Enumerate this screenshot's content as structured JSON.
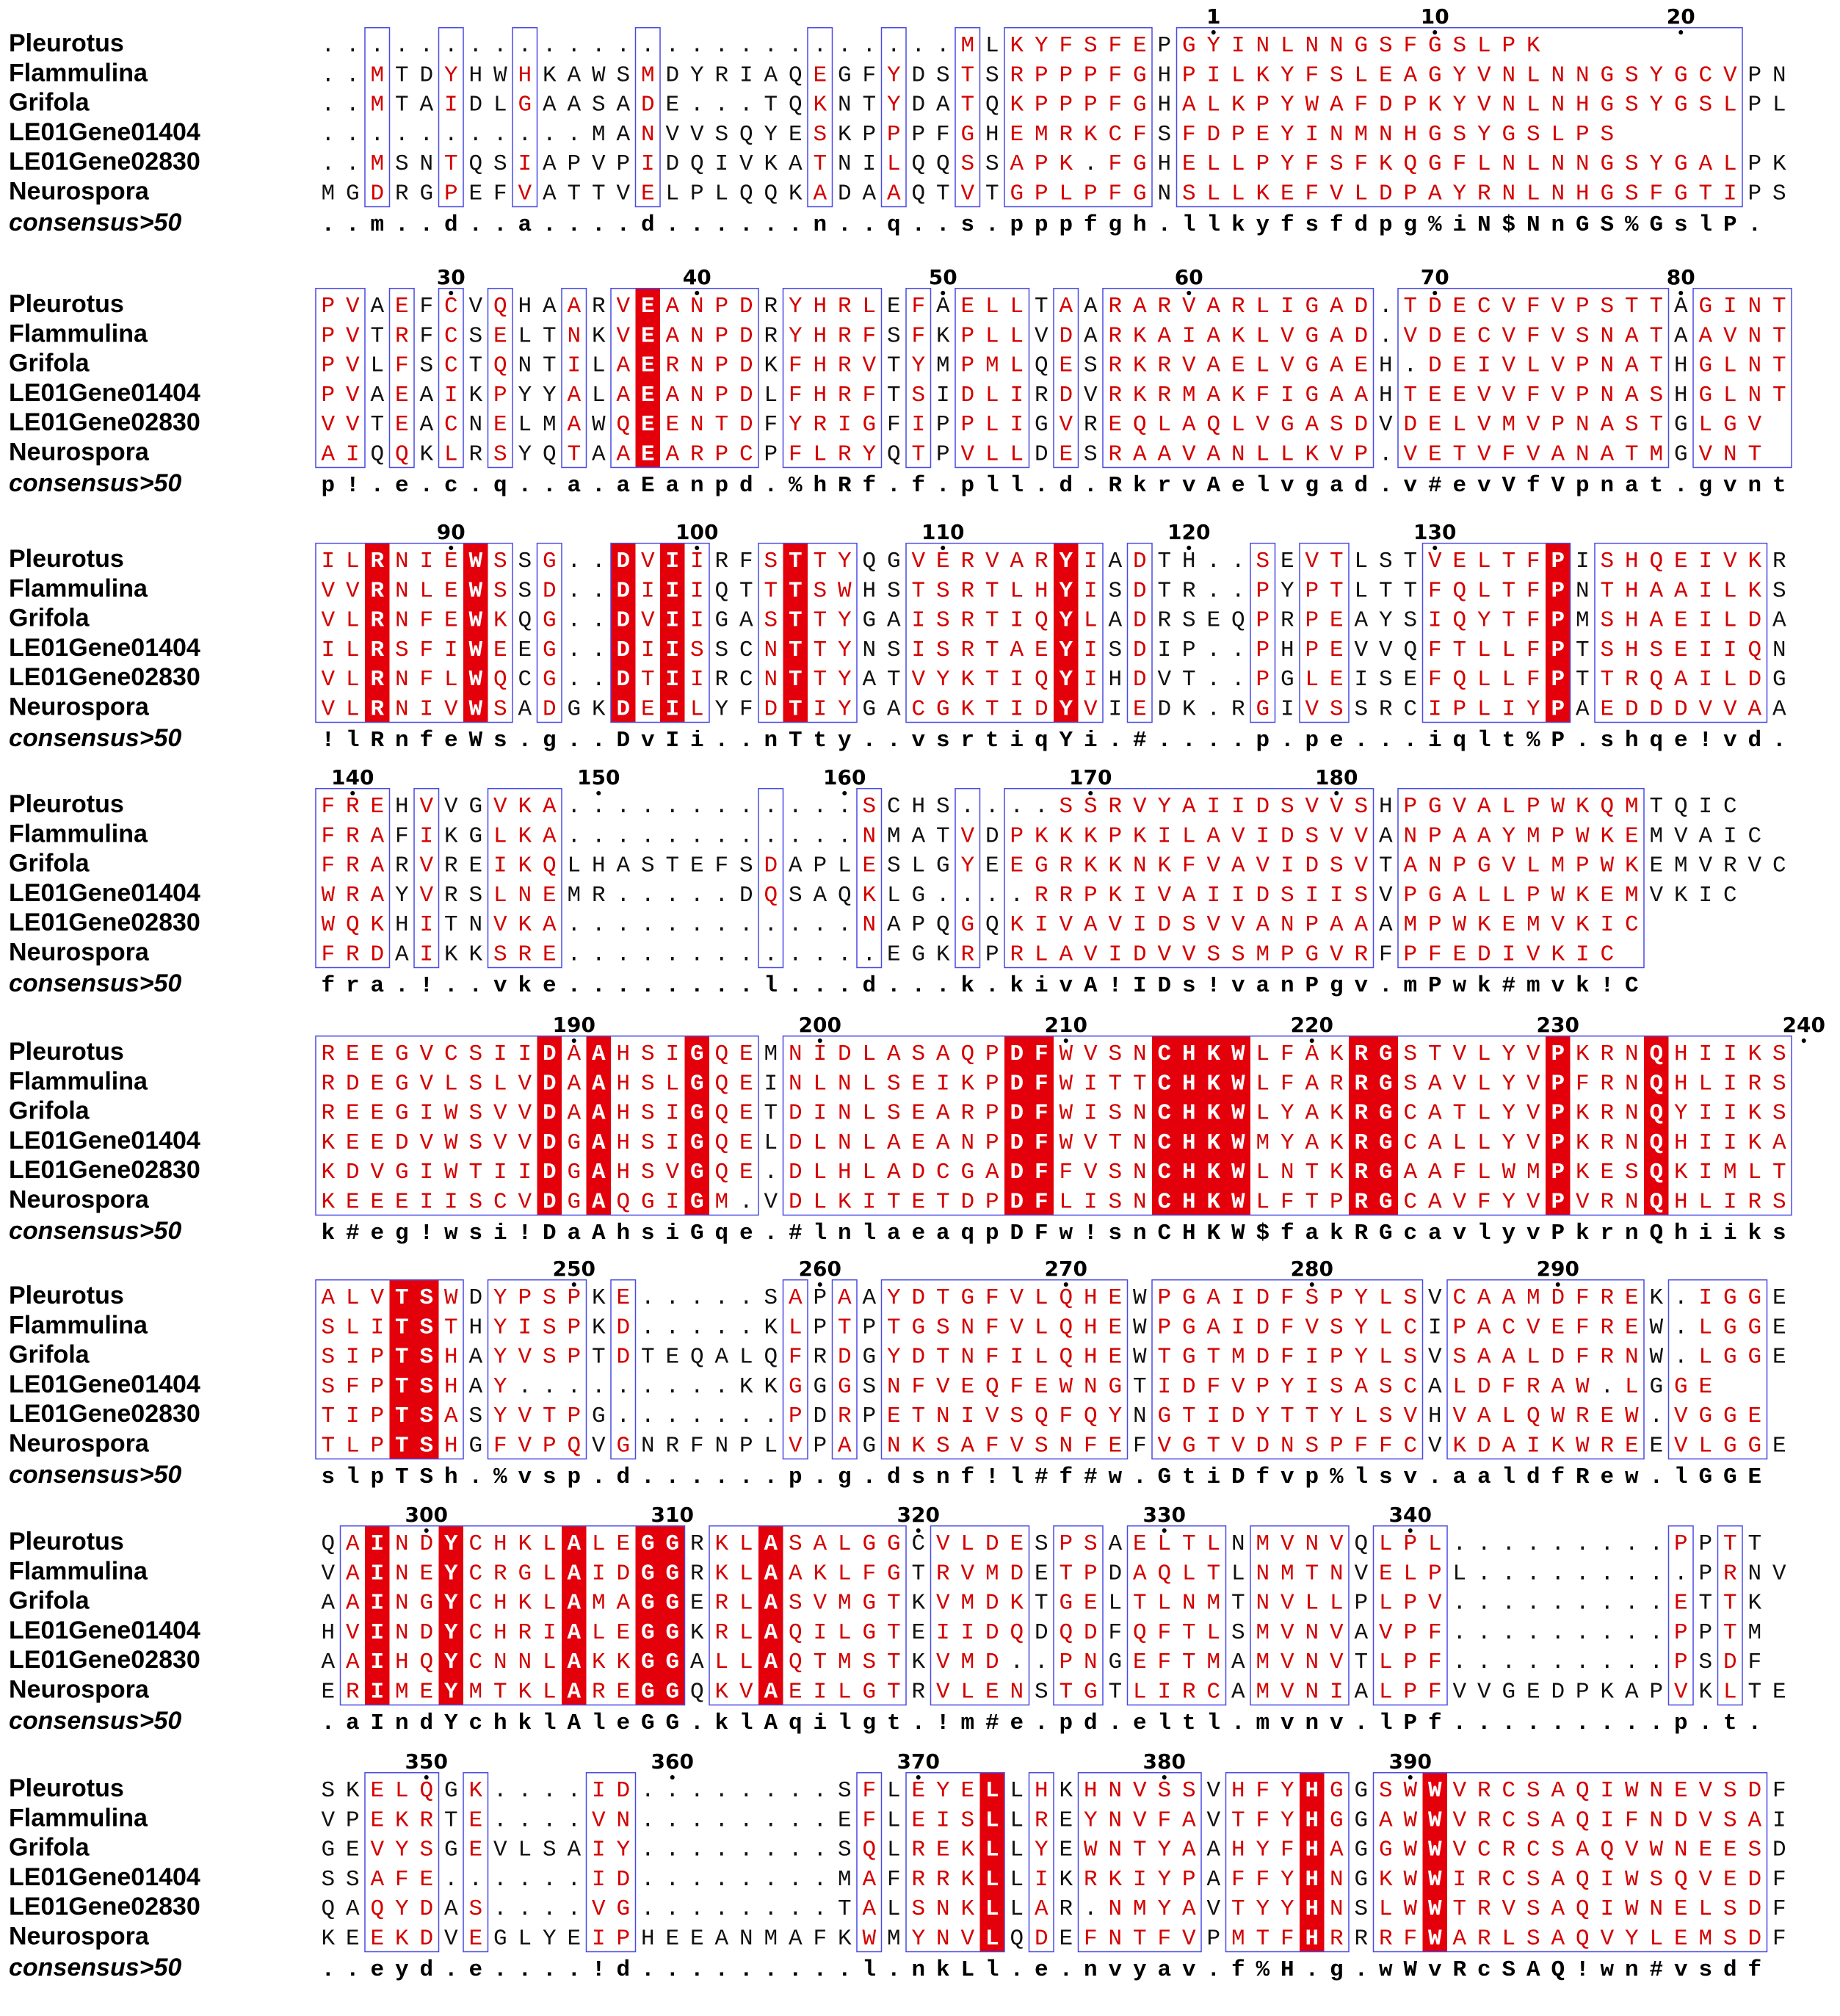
{
  "figure": {
    "title": "",
    "colors": {
      "identical_bg": "#e3000b",
      "similar_text": "#d40000",
      "box_border": "#4a4ae6",
      "consensus_text": "#000000"
    }
  },
  "blocks": [
    {
      "start": 1,
      "numbers": [
        {
          "col": 36,
          "label": "1"
        },
        {
          "col": 45,
          "label": "10"
        },
        {
          "col": 55,
          "label": "20"
        }
      ],
      "rows": [
        {
          "name": "Pleurotus",
          "seq": "..........................MLKYFSFEPGYINLNNGSFGSLPK"
        },
        {
          "name": "Flammulina",
          "seq": "..MTDYHWHKAWSMDYRIAQEGFYDSTSRPPPFGHPILKYFSLEAGYVNLNNGSYGCVPN"
        },
        {
          "name": "Grifola",
          "seq": "..MTAIDLGAASADE...TQKNTYDATQKPPPFGHALKPYWAFDPKYVNLNHGSYGSLPL"
        },
        {
          "name": "LE01Gene01404",
          "seq": "...........MANVVSQYESKPPPFGHEMRKCFSFDPEYINMNHGSYGSLPS"
        },
        {
          "name": "LE01Gene02830",
          "seq": "..MSNTQSIAPVPIDQIVKATNILQQSSAPK.FGHELLPYFSFKQGFLNLNNGSYGALPK"
        },
        {
          "name": "Neurospora",
          "seq": "MGDRGPEFVATTVELPLQQKADAAQTVTGPLPFGNSLLKEFVLDPAYRNLNHGSFGTIPS"
        }
      ],
      "consensus": "..m..d..a....d......n..q..s.pppfgh.llkyfsfdpg%iN$NnGS%GslP."
    },
    {
      "start": 25,
      "numbers": [
        {
          "col": 5,
          "label": "30"
        },
        {
          "col": 15,
          "label": "40"
        },
        {
          "col": 25,
          "label": "50"
        },
        {
          "col": 35,
          "label": "60"
        },
        {
          "col": 45,
          "label": "70"
        },
        {
          "col": 55,
          "label": "80"
        }
      ],
      "rows": [
        {
          "name": "Pleurotus",
          "seq": "PVAEFCVQHAARVEANPDRYHRLEFAELLTAARARVARLIGAD.TDECVFVPSTTAGINT"
        },
        {
          "name": "Flammulina",
          "seq": "PVTRFCSELTNKVEANPDRYHRFSFKPLLVDARKAIAKLVGAD.VDECVFVSNATAAVNT"
        },
        {
          "name": "Grifola",
          "seq": "PVLFSCTQNTILAERNPDKFHRVTYMPMLQESRKRVAELVGAEH.DEIVLVPNATHGLNT"
        },
        {
          "name": "LE01Gene01404",
          "seq": "PVAEAIKPYYALAEANPDLFHRFTSIDLIRDVRKRMAKFIGAAHTEEVVFVPNASHGLNT"
        },
        {
          "name": "LE01Gene02830",
          "seq": "VVTEACNELMAWQEENTDFYRIGFIPPLIGVREQLAQLVGASDVDELVMVPNASTGLGV"
        },
        {
          "name": "Neurospora",
          "seq": "AIQQKLRSYQTAAEARPCPFLRYQTPVLLDESRAAVANLLKVP.VETVFVANATMGVNT"
        }
      ],
      "consensus": "p!.e.c.q..a.aEanpd.%hRf.f.pll.d.RkrvAelvgad.v#evVfVpnat.gvnt"
    },
    {
      "start": 85,
      "numbers": [
        {
          "col": 5,
          "label": "90"
        },
        {
          "col": 15,
          "label": "100"
        },
        {
          "col": 25,
          "label": "110"
        },
        {
          "col": 35,
          "label": "120"
        },
        {
          "col": 45,
          "label": "130"
        }
      ],
      "rows": [
        {
          "name": "Pleurotus",
          "seq": "ILRNIEWSSG..DVIIRFSTTYQGVERVARYIADTH..SEVTLSTVELTFPISHQEIVKR"
        },
        {
          "name": "Flammulina",
          "seq": "VVRNLEWSSD..DIIIQTTTSWHSTSRTLHYISDTR..PYPTLTTFQLTFPNTHAAILKS"
        },
        {
          "name": "Grifola",
          "seq": "VLRNFEWKQG..DVIIGASTTYGAISRTIQYLADRSEQPRPEAYSIQYTFPMSHAEILDA"
        },
        {
          "name": "LE01Gene01404",
          "seq": "ILRSFIWEEG..DIISSCNTTYNSISRTAEYISDIP..PHPEVVQFTLLFPTSHSEIIQN"
        },
        {
          "name": "LE01Gene02830",
          "seq": "VLRNFLWQCG..DTIIRCNTTYATVYKTIQYIHDVT..PGLEISEFQLLFPTTRQAILDG"
        },
        {
          "name": "Neurospora",
          "seq": "VLRNIVWSADGKDEILYFDTIYGACGKTIDYVIEDK.RGIVSSRCIPLIYPAEDDDVVAA"
        }
      ],
      "consensus": "!lRnfeWs.g..DvIi..nTty..vsrtiqYi.#....p.pe...iqlt%P.shqe!vd."
    },
    {
      "start": 140,
      "numbers": [
        {
          "col": 1,
          "label": "140"
        },
        {
          "col": 11,
          "label": "150"
        },
        {
          "col": 21,
          "label": "160"
        },
        {
          "col": 31,
          "label": "170"
        },
        {
          "col": 41,
          "label": "180"
        }
      ],
      "rows": [
        {
          "name": "Pleurotus",
          "seq": "FREHVVGVKA............SCHS....SSRVYAIIDSVVSHPGVALPWKQMTQIC"
        },
        {
          "name": "Flammulina",
          "seq": "FRAFIKGLKA............NMATVDPKKKPKILAVIDSVVANPAAYMPWKEMVAIC"
        },
        {
          "name": "Grifola",
          "seq": "FRARVREIKQLHASTEFSDAPLESLGYEEGRKKNKFVAVIDSVTANPGVLMPWKEMVRVC"
        },
        {
          "name": "LE01Gene01404",
          "seq": "WRAYVRSLNEMR.....DQSAQKLG....RRPKIVAIIDSIISVPGALLPWKEMVKIC"
        },
        {
          "name": "LE01Gene02830",
          "seq": "WQKHITNVKA............NAPQGQKIVAVIDSVVANPAAAMPWKEMVKIC"
        },
        {
          "name": "Neurospora",
          "seq": "FRDAIKKSRE.............EGKRPRLAVIDVVSSMPGVRFPFEDIVKIC"
        }
      ],
      "consensus": "fra.!..vke........l...d...k.kivA!IDs!vanPgv.mPwk#mvk!C"
    },
    {
      "start": 181,
      "numbers": [
        {
          "col": 10,
          "label": "190"
        },
        {
          "col": 20,
          "label": "200"
        },
        {
          "col": 30,
          "label": "210"
        },
        {
          "col": 40,
          "label": "220"
        },
        {
          "col": 50,
          "label": "230"
        },
        {
          "col": 60,
          "label": "240"
        }
      ],
      "rows": [
        {
          "name": "Pleurotus",
          "seq": "REEGVCSIIDAAHSIGQEMNIDLASAQPDFWVSNCHKWLFAKRGSTVLYVPKRNQHIIKS"
        },
        {
          "name": "Flammulina",
          "seq": "RDEGVLSLVDAAHSLGQEINLNLSEIKPDFWITTCHKWLFARRGSAVLYVPFRNQHLIRS"
        },
        {
          "name": "Grifola",
          "seq": "REEGIWSVVDAAHSIGQETDINLSEARPDFWISNCHKWLYAKRGCATLYVPKRNQYIIKS"
        },
        {
          "name": "LE01Gene01404",
          "seq": "KEEDVWSVVDGAHSIGQELDLNLAEANPDFWVTNCHKWMYAKRGCALLYVPKRNQHIIKA"
        },
        {
          "name": "LE01Gene02830",
          "seq": "KDVGIWTIIDGAHSVGQE.DLHLADCGADFFVSNCHKWLNTKRGAAFLWMPKESQKIMLT"
        },
        {
          "name": "Neurospora",
          "seq": "KEEEIISCVDGAQGIGM.VDLKITETDPDFLISNCHKWLFTPRGCAVFYVPVRNQHLIRS"
        }
      ],
      "consensus": "k#eg!wsi!DaAhsiGqe.#lnlaeaqpDFw!snCHKW$fakRGcavlyvPkrnQhiiks"
    },
    {
      "start": 241,
      "numbers": [
        {
          "col": 10,
          "label": "250"
        },
        {
          "col": 20,
          "label": "260"
        },
        {
          "col": 30,
          "label": "270"
        },
        {
          "col": 40,
          "label": "280"
        },
        {
          "col": 50,
          "label": "290"
        }
      ],
      "rows": [
        {
          "name": "Pleurotus",
          "seq": "ALVTSWDYPSPKE.....SAPAAYDTGFVLQHEWPGAIDFSPYLSVCAAMDFREK.IGGE"
        },
        {
          "name": "Flammulina",
          "seq": "SLITSTHYISPKD.....KLPTPTGSNFVLQHEWPGAIDFVSYLCIPACVEFREW.LGGE"
        },
        {
          "name": "Grifola",
          "seq": "SIPTSHAYVSPTDTEQALQFRDGYDTNFILQHEWTGTMDFIPYLSVSAALDFRNW.LGGE"
        },
        {
          "name": "LE01Gene01404",
          "seq": "SFPTSHAY.........KKGGGSNFVEQFEWNGTIDFVPYISASCALDFRAW.LGGE"
        },
        {
          "name": "LE01Gene02830",
          "seq": "TIPTSASYVTPG.......PDRPETNIVSQFQYNGTIDYTTYLSVHVALQWREW.VGGE"
        },
        {
          "name": "Neurospora",
          "seq": "TLPTSHGFVPQVGNRFNPLVPAGNKSAFVSNFEFVGTVDNSPFFCVKDAIKWREEVLGGE"
        }
      ],
      "consensus": "slpTSh.%vsp.d......p.g.dsnf!l#f#w.GtiDfvp%lsv.aaldfRew.lGGE"
    },
    {
      "start": 297,
      "numbers": [
        {
          "col": 4,
          "label": "300"
        },
        {
          "col": 14,
          "label": "310"
        },
        {
          "col": 24,
          "label": "320"
        },
        {
          "col": 34,
          "label": "330"
        },
        {
          "col": 44,
          "label": "340"
        }
      ],
      "rows": [
        {
          "name": "Pleurotus",
          "seq": "QAINDYCHKLALEGGRKLASALGGCVLDESPSAELTLNMVNVQLPL.........PPTT"
        },
        {
          "name": "Flammulina",
          "seq": "VAINEYCRGLAIDGGRKLAAKLFGTRVMDETPDAQLTLNMTNVELPL.........PRNV"
        },
        {
          "name": "Grifola",
          "seq": "AAINGYCHKLAMAGGERLASVMGTKVMDKTGELTLNMTNVLLPLPV.........ETTK"
        },
        {
          "name": "LE01Gene01404",
          "seq": "HVINDYCHRIALEGGKRLAQILGTEIIDQDQDFQFTLSMVNVAVPF.........PPTM"
        },
        {
          "name": "LE01Gene02830",
          "seq": "AAIHQYCNNLAKKGGALLAQTMSTKVMD..PNGEFTMAMVNVTLPF.........PSDF"
        },
        {
          "name": "Neurospora",
          "seq": "ERIMEYMTKLAREGGQKVAEILGTRVLENSTGTLIRCAMVNIALPFVVGEDPKAPVKLTE"
        }
      ],
      "consensus": ".aIndYchklAleGG.klAqilgt.!m#e.pd.eltl.mvnv.lPf.........p.t."
    },
    {
      "start": 343,
      "numbers": [
        {
          "col": 4,
          "label": "350"
        },
        {
          "col": 14,
          "label": "360"
        },
        {
          "col": 24,
          "label": "370"
        },
        {
          "col": 34,
          "label": "380"
        },
        {
          "col": 44,
          "label": "390"
        }
      ],
      "rows": [
        {
          "name": "Pleurotus",
          "seq": "SKELQGK....ID........SFLEYELLHKHNVSSVHFYHGGSWWVRCSAQIWNEVSDF"
        },
        {
          "name": "Flammulina",
          "seq": "VPEKRTE....VN........EFLEISLLREYNVFAVTFYHGGAWWVRCSAQIFNDVSAI"
        },
        {
          "name": "Grifola",
          "seq": "GEVYSGEVLSAIY........SQLREKLLYEWNTYAAHYFHAGGWWVCRCSAQVWNEESDF"
        },
        {
          "name": "LE01Gene01404",
          "seq": "SSAFE......ID........MAFRRKLLIKRKIYPAFFYHNGKWWIRCSAQIWSQVEDF"
        },
        {
          "name": "LE01Gene02830",
          "seq": "QAQYDAS....VG........TALSNKLLAR.NMYAVTYYHNSLWWTRVSAQIWNELSDF"
        },
        {
          "name": "Neurospora",
          "seq": "KEEKDVEGLYEIPHEEANMAFKWMYNVLQDEFNTFVPMTFHRRRFWARLSAQVYLEMSDF"
        }
      ],
      "consensus": "..eyd.e....!d.........l.nkLl.e.nvyav.f%H.g.wWvRcSAQ!wn#vsdf"
    }
  ]
}
